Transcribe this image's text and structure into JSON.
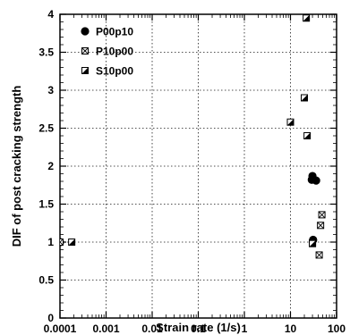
{
  "chart_data": {
    "type": "scatter",
    "xlabel": "Strain rate (1/s)",
    "ylabel": "DIF of post cracking strength",
    "xscale": "log",
    "xlim": [
      0.0001,
      100
    ],
    "ylim": [
      0,
      4
    ],
    "grid": true,
    "legend_position": "top-left",
    "x_tick_labels": [
      "0.0001",
      "0.001",
      "0.01",
      "0.1",
      "1",
      "10",
      "100"
    ],
    "x_ticks": [
      0.0001,
      0.001,
      0.01,
      0.1,
      1,
      10,
      100
    ],
    "y_tick_labels": [
      "0",
      "0.5",
      "1",
      "1.5",
      "2",
      "2.5",
      "3",
      "3.5",
      "4"
    ],
    "y_ticks": [
      0,
      0.5,
      1,
      1.5,
      2,
      2.5,
      3,
      3.5,
      4
    ],
    "series": [
      {
        "name": "P00p10",
        "marker": "filled-circle",
        "color": "#000000",
        "points": [
          {
            "x": 0.0001,
            "y": 1.0
          },
          {
            "x": 30,
            "y": 1.87
          },
          {
            "x": 29,
            "y": 1.82
          },
          {
            "x": 36,
            "y": 1.81
          },
          {
            "x": 31,
            "y": 1.03
          }
        ]
      },
      {
        "name": "P10p00",
        "marker": "crossed-square",
        "color": "#000000",
        "points": [
          {
            "x": 0.0001,
            "y": 1.0
          },
          {
            "x": 30,
            "y": 0.99
          },
          {
            "x": 42,
            "y": 0.83
          },
          {
            "x": 45,
            "y": 1.22
          },
          {
            "x": 48,
            "y": 1.36
          }
        ]
      },
      {
        "name": "S10p00",
        "marker": "half-filled-square",
        "color": "#000000",
        "points": [
          {
            "x": 0.00018,
            "y": 1.0
          },
          {
            "x": 10,
            "y": 2.58
          },
          {
            "x": 20,
            "y": 2.9
          },
          {
            "x": 23,
            "y": 2.4
          },
          {
            "x": 22,
            "y": 3.95
          },
          {
            "x": 30,
            "y": 0.98
          }
        ]
      }
    ]
  }
}
